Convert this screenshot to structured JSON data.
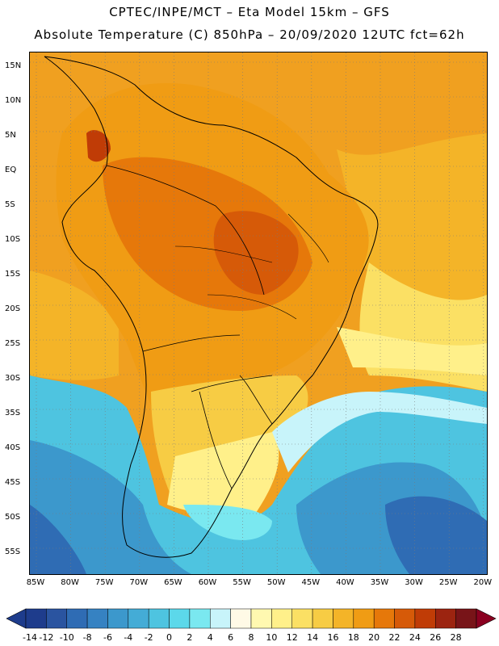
{
  "header": {
    "line1": "CPTEC/INPE/MCT –  Eta Model 15km – GFS",
    "line2": "Absolute Temperature (C) 850hPa – 20/09/2020 12UTC fct=62h"
  },
  "axes": {
    "lat_labels": [
      "15N",
      "10N",
      "5N",
      "EQ",
      "5S",
      "10S",
      "15S",
      "20S",
      "25S",
      "30S",
      "35S",
      "40S",
      "45S",
      "50S",
      "55S"
    ],
    "lon_labels": [
      "85W",
      "80W",
      "75W",
      "70W",
      "65W",
      "60W",
      "55W",
      "50W",
      "45W",
      "40W",
      "35W",
      "30W",
      "25W",
      "20W"
    ]
  },
  "colorbar": {
    "labels": [
      "-14",
      "-12",
      "-10",
      "-8",
      "-6",
      "-4",
      "-2",
      "0",
      "2",
      "4",
      "6",
      "8",
      "10",
      "12",
      "14",
      "16",
      "18",
      "20",
      "22",
      "24",
      "26",
      "28"
    ],
    "colors": [
      "#1e3c8c",
      "#2a54a0",
      "#2f6cb4",
      "#3682c2",
      "#3c98cc",
      "#44acd6",
      "#4ec4e0",
      "#5cd8ea",
      "#7ae8f0",
      "#c8f4fa",
      "#fffae6",
      "#fff8b0",
      "#fff08a",
      "#fbe064",
      "#f7cc44",
      "#f4b428",
      "#f09c14",
      "#e6780a",
      "#d65a08",
      "#c03c06",
      "#9c2410",
      "#781418"
    ]
  },
  "map": {
    "palette": {
      "deep_blue": "#2f6cb4",
      "mid_blue": "#3c98cc",
      "cyan": "#4ec4e0",
      "light_cyan": "#7ae8f0",
      "pale": "#fffae6",
      "light_yellow": "#fff08a",
      "yellow": "#f7cc44",
      "orange_yellow": "#f4b428",
      "orange": "#f09c14",
      "dark_orange": "#e6780a",
      "red_orange": "#d65a08"
    }
  }
}
